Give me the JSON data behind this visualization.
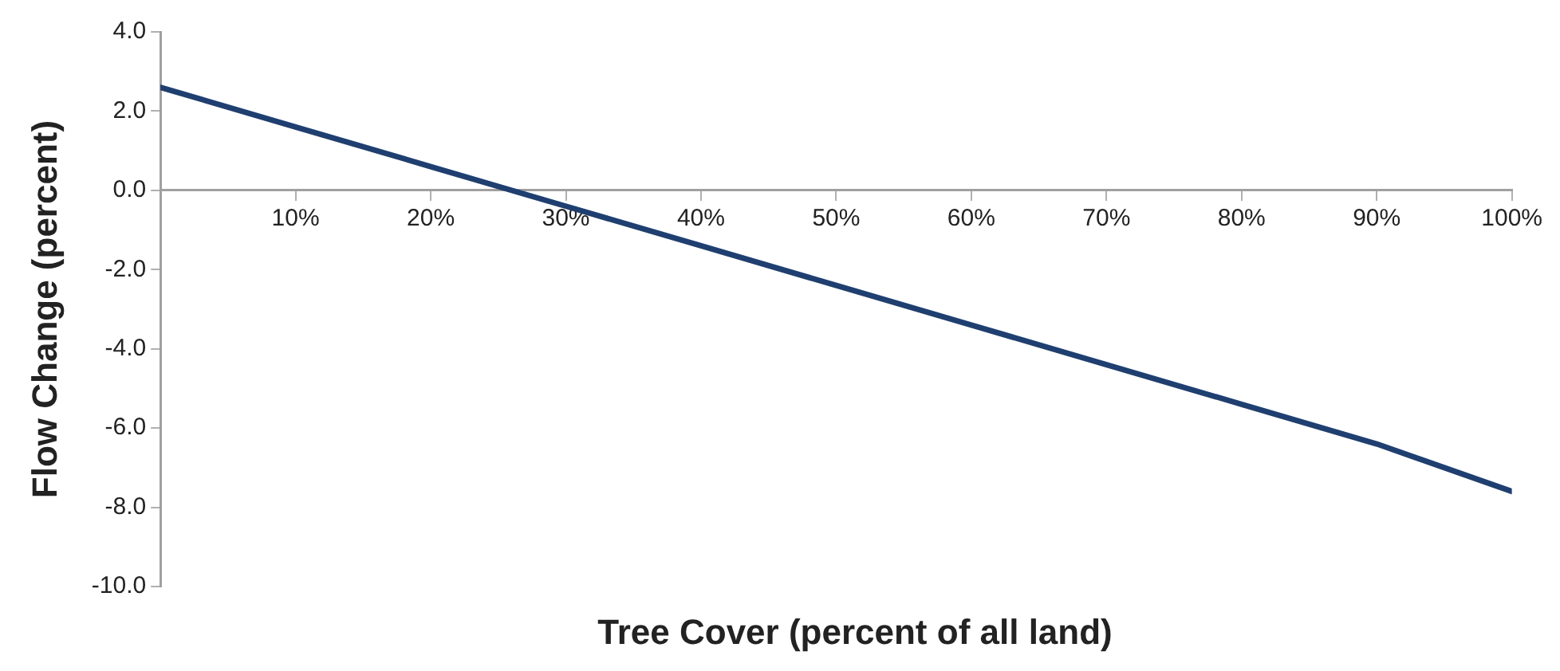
{
  "chart_data": {
    "type": "line",
    "xlabel": "Tree Cover (percent of all land)",
    "ylabel": "Flow Change (percent)",
    "x": [
      0,
      10,
      20,
      30,
      40,
      50,
      60,
      70,
      80,
      90,
      100
    ],
    "series": [
      {
        "color": "#1f3f70",
        "values": [
          2.6,
          1.6,
          0.6,
          -0.4,
          -1.4,
          -2.4,
          -3.4,
          -4.4,
          -5.4,
          -6.4,
          -7.6
        ]
      }
    ],
    "xlim": [
      0,
      100
    ],
    "xticks": [
      {
        "value": 10,
        "label": "10%"
      },
      {
        "value": 20,
        "label": "20%"
      },
      {
        "value": 30,
        "label": "30%"
      },
      {
        "value": 40,
        "label": "40%"
      },
      {
        "value": 50,
        "label": "50%"
      },
      {
        "value": 60,
        "label": "60%"
      },
      {
        "value": 70,
        "label": "70%"
      },
      {
        "value": 80,
        "label": "80%"
      },
      {
        "value": 90,
        "label": "90%"
      },
      {
        "value": 100,
        "label": "100%"
      }
    ],
    "ylim": [
      -10,
      4
    ],
    "yticks": [
      {
        "value": 4,
        "label": "4.0"
      },
      {
        "value": 2,
        "label": "2.0"
      },
      {
        "value": 0,
        "label": "0.0"
      },
      {
        "value": -2,
        "label": "-2.0"
      },
      {
        "value": -4,
        "label": "-4.0"
      },
      {
        "value": -6,
        "label": "-6.0"
      },
      {
        "value": -8,
        "label": "-8.0"
      },
      {
        "value": -10,
        "label": "-10.0"
      }
    ],
    "grid": false,
    "legend": false,
    "marker": "none",
    "line_style": "solid"
  }
}
